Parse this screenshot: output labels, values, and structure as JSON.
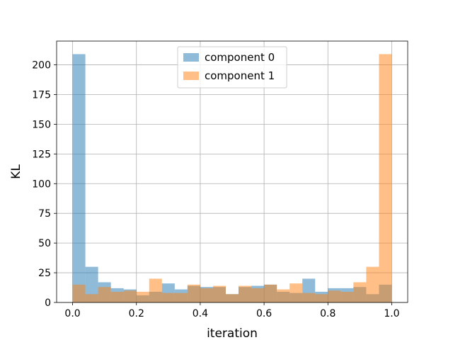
{
  "chart_data": {
    "type": "histogram",
    "xlabel": "iteration",
    "ylabel": "KL",
    "xlim": [
      -0.05,
      1.05
    ],
    "ylim": [
      0,
      220
    ],
    "x_ticks": [
      0.0,
      0.2,
      0.4,
      0.6,
      0.8,
      1.0
    ],
    "x_tick_labels": [
      "0.0",
      "0.2",
      "0.4",
      "0.6",
      "0.8",
      "1.0"
    ],
    "y_ticks": [
      0,
      25,
      50,
      75,
      100,
      125,
      150,
      175,
      200
    ],
    "y_tick_labels": [
      "0",
      "25",
      "50",
      "75",
      "100",
      "125",
      "150",
      "175",
      "200"
    ],
    "grid": true,
    "legend_position": "top-center",
    "bins": {
      "start": 0.0,
      "end": 1.0,
      "count": 25
    },
    "series": [
      {
        "name": "component 0",
        "color": "#1f77b4",
        "alpha": 0.5,
        "values": [
          209,
          30,
          17,
          12,
          11,
          6,
          9,
          16,
          11,
          14,
          13,
          13,
          7,
          13,
          14,
          15,
          9,
          8,
          20,
          9,
          12,
          12,
          13,
          7,
          15
        ]
      },
      {
        "name": "component 1",
        "color": "#ff7f0e",
        "alpha": 0.5,
        "values": [
          15,
          7,
          13,
          9,
          10,
          9,
          20,
          8,
          8,
          15,
          12,
          14,
          7,
          14,
          12,
          15,
          11,
          16,
          8,
          7,
          10,
          9,
          17,
          30,
          209
        ]
      }
    ]
  }
}
